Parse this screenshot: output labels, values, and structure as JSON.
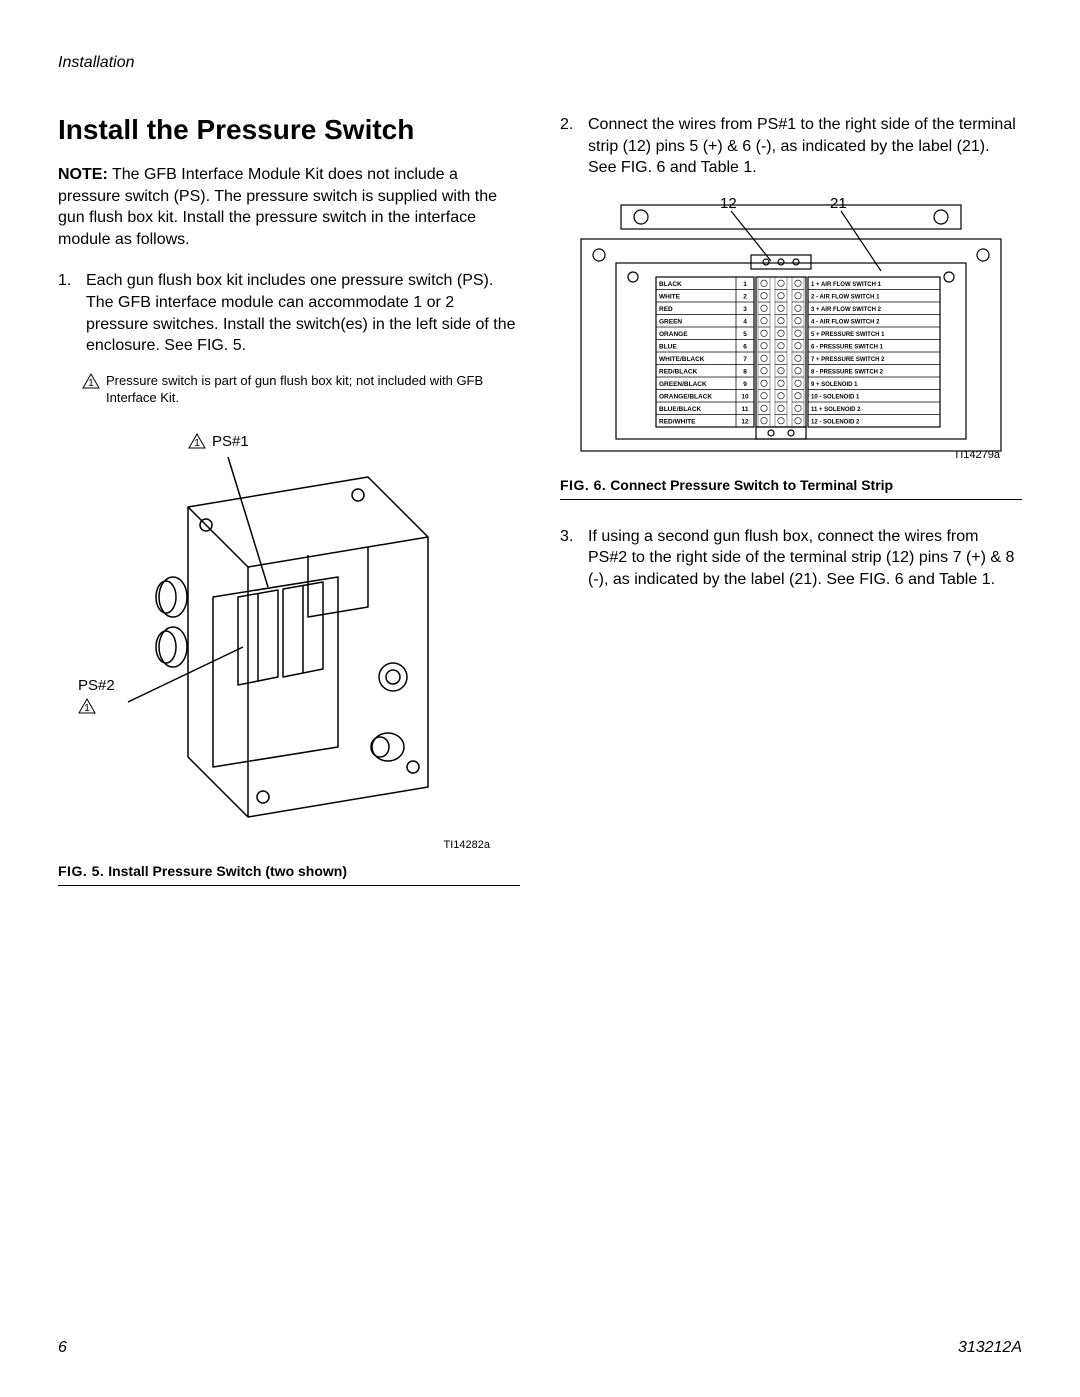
{
  "header": {
    "section": "Installation"
  },
  "title": "Install the Pressure Switch",
  "note": {
    "lead": "NOTE:",
    "text": "The GFB Interface Module Kit does not include a pressure switch (PS). The pressure switch is supplied with the gun flush box kit. Install the pressure switch in the interface module as follows."
  },
  "steps": {
    "s1": {
      "num": "1.",
      "text": "Each gun flush box kit includes one pressure switch (PS). The GFB interface module can accommodate 1 or 2 pressure switches. Install the switch(es) in the left side of the enclosure. See FIG. 5."
    },
    "s2": {
      "num": "2.",
      "text": "Connect the wires from PS#1 to the right side of the terminal strip (12) pins 5 (+) & 6 (-), as indicated by the label (21). See FIG. 6 and Table 1."
    },
    "s3": {
      "num": "3.",
      "text": "If using a second gun flush box, connect the wires from PS#2 to the right side of the terminal strip (12) pins 7 (+) & 8 (-), as indicated by the label (21). See FIG. 6 and Table 1."
    }
  },
  "small_note": "Pressure switch is part of gun flush box kit; not included with GFB Interface Kit.",
  "fig5": {
    "ps1": "PS#1",
    "ps2": "PS#2",
    "imgref": "TI14282a",
    "caption_pre": "FIG. 5.",
    "caption": "Install Pressure Switch (two shown)"
  },
  "fig6": {
    "callout12": "12",
    "callout21": "21",
    "imgref": "TI14279a",
    "caption_pre": "FIG. 6.",
    "caption": "Connect Pressure Switch to Terminal Strip",
    "terminal_rows": [
      {
        "left": "BLACK",
        "n": "1",
        "right": "1 + AIR FLOW SWITCH 1"
      },
      {
        "left": "WHITE",
        "n": "2",
        "right": "2 - AIR FLOW SWITCH 1"
      },
      {
        "left": "RED",
        "n": "3",
        "right": "3 + AIR FLOW SWITCH 2"
      },
      {
        "left": "GREEN",
        "n": "4",
        "right": "4 - AIR FLOW SWITCH 2"
      },
      {
        "left": "ORANGE",
        "n": "5",
        "right": "5 + PRESSURE SWITCH 1"
      },
      {
        "left": "BLUE",
        "n": "6",
        "right": "6 - PRESSURE SWITCH 1"
      },
      {
        "left": "WHITE/BLACK",
        "n": "7",
        "right": "7 + PRESSURE SWITCH 2"
      },
      {
        "left": "RED/BLACK",
        "n": "8",
        "right": "8 - PRESSURE SWITCH 2"
      },
      {
        "left": "GREEN/BLACK",
        "n": "9",
        "right": "9 + SOLENOID 1"
      },
      {
        "left": "ORANGE/BLACK",
        "n": "10",
        "right": "10 - SOLENOID 1"
      },
      {
        "left": "BLUE/BLACK",
        "n": "11",
        "right": "11 + SOLENOID 2"
      },
      {
        "left": "RED/WHITE",
        "n": "12",
        "right": "12 - SOLENOID 2"
      }
    ]
  },
  "footer": {
    "page": "6",
    "doc": "313212A"
  }
}
